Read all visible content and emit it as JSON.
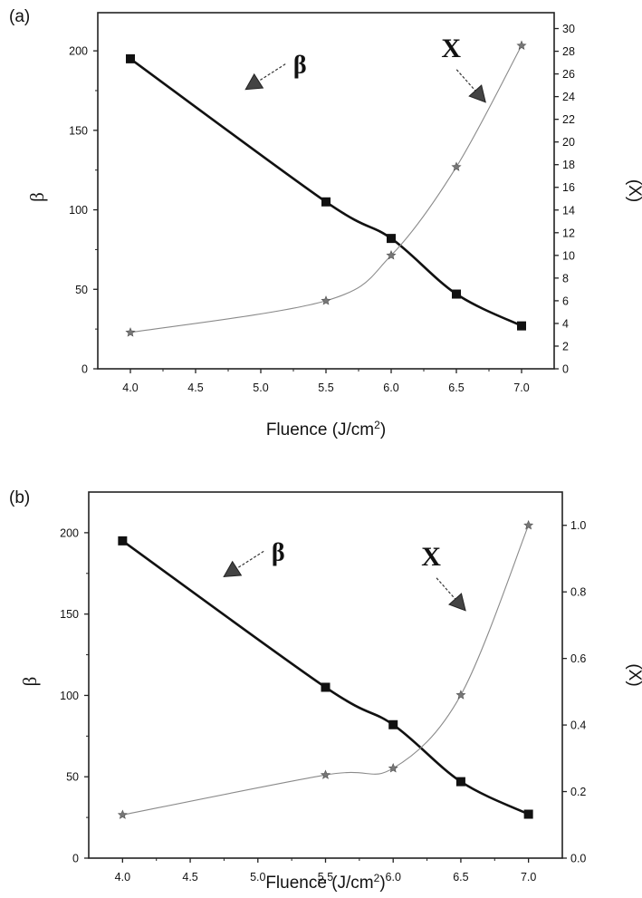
{
  "chart_data": [
    {
      "panel_label": "(a)",
      "type": "line",
      "x": [
        4.0,
        5.5,
        6.0,
        6.5,
        7.0
      ],
      "xlim": [
        3.75,
        7.25
      ],
      "xticks": [
        "4.0",
        "4.5",
        "5.0",
        "5.5",
        "6.0",
        "6.5",
        "7.0"
      ],
      "xlabel": "Fluence (J/cm",
      "xlabel_sup": "2",
      "xlabel_end": ")",
      "ylabel": "β",
      "ylim": [
        0,
        224
      ],
      "yticks": [
        "0",
        "50",
        "100",
        "150",
        "200"
      ],
      "y2label": "(X)",
      "y2lim": [
        0,
        31.4
      ],
      "y2ticks": [
        "0",
        "2",
        "4",
        "6",
        "8",
        "10",
        "12",
        "14",
        "16",
        "18",
        "20",
        "22",
        "24",
        "26",
        "28",
        "30"
      ],
      "series": [
        {
          "name": "β",
          "axis": "left",
          "marker": "square",
          "color": "#111111",
          "values": [
            195,
            105,
            82,
            47,
            27
          ]
        },
        {
          "name": "X",
          "axis": "right",
          "marker": "star",
          "color": "#8a8a8a",
          "values": [
            3.2,
            6.0,
            10.0,
            17.8,
            28.5
          ]
        }
      ],
      "annotations": [
        {
          "text": "β",
          "target_series": "β",
          "at": [
            5.3,
            186
          ]
        },
        {
          "text": "X",
          "target_series": "X",
          "at": [
            6.46,
            27.5
          ]
        }
      ],
      "grid": false
    },
    {
      "panel_label": "(b)",
      "type": "line",
      "x": [
        4.0,
        5.5,
        6.0,
        6.5,
        7.0
      ],
      "xlim": [
        3.75,
        7.25
      ],
      "xticks": [
        "4.0",
        "4.5",
        "5.0",
        "5.5",
        "6.0",
        "6.5",
        "7.0"
      ],
      "xlabel": "Fluence (J/cm",
      "xlabel_sup": "2",
      "xlabel_end": ")",
      "ylabel": "β",
      "ylim": [
        0,
        225
      ],
      "yticks": [
        "0",
        "50",
        "100",
        "150",
        "200"
      ],
      "y2label": "(X)",
      "y2lim": [
        0,
        1.1
      ],
      "y2ticks": [
        "0.0",
        "0.2",
        "0.4",
        "0.6",
        "0.8",
        "1.0"
      ],
      "series": [
        {
          "name": "β",
          "axis": "left",
          "marker": "square",
          "color": "#111111",
          "values": [
            195,
            105,
            82,
            47,
            27
          ]
        },
        {
          "name": "X",
          "axis": "right",
          "marker": "star",
          "color": "#8a8a8a",
          "values": [
            0.13,
            0.25,
            0.27,
            0.49,
            1.0
          ]
        }
      ],
      "annotations": [
        {
          "text": "β",
          "target_series": "β",
          "at": [
            5.15,
            183
          ]
        },
        {
          "text": "X",
          "target_series": "X",
          "at": [
            6.28,
            0.88
          ]
        }
      ],
      "grid": false
    }
  ]
}
